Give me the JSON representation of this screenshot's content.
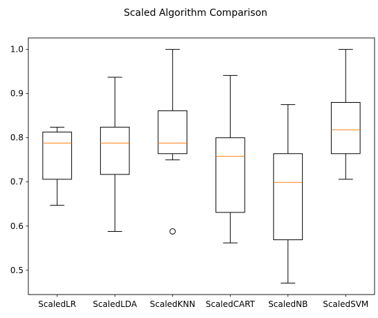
{
  "chart_data": {
    "type": "box",
    "title": "Scaled Algorithm Comparison",
    "xlabel": "",
    "ylabel": "",
    "ylim": [
      0.445,
      1.026
    ],
    "yticks": [
      0.5,
      0.6,
      0.7,
      0.8,
      0.9,
      1.0
    ],
    "ytick_labels": [
      "0.5",
      "0.6",
      "0.7",
      "0.8",
      "0.9",
      "1.0"
    ],
    "grid": false,
    "box_color": "#000000",
    "median_color": "#ff7f0e",
    "categories": [
      "ScaledLR",
      "ScaledLDA",
      "ScaledKNN",
      "ScaledCART",
      "ScaledNB",
      "ScaledSVM"
    ],
    "series": [
      {
        "whislo": 0.647,
        "q1": 0.706,
        "med": 0.788,
        "q3": 0.813,
        "whishi": 0.824,
        "fliers": []
      },
      {
        "whislo": 0.588,
        "q1": 0.717,
        "med": 0.788,
        "q3": 0.824,
        "whishi": 0.937,
        "fliers": []
      },
      {
        "whislo": 0.75,
        "q1": 0.764,
        "med": 0.788,
        "q3": 0.861,
        "whishi": 1.0,
        "fliers": [
          0.588
        ]
      },
      {
        "whislo": 0.562,
        "q1": 0.631,
        "med": 0.758,
        "q3": 0.8,
        "whishi": 0.941,
        "fliers": []
      },
      {
        "whislo": 0.471,
        "q1": 0.569,
        "med": 0.699,
        "q3": 0.764,
        "whishi": 0.875,
        "fliers": []
      },
      {
        "whislo": 0.706,
        "q1": 0.764,
        "med": 0.818,
        "q3": 0.88,
        "whishi": 1.0,
        "fliers": []
      }
    ]
  }
}
